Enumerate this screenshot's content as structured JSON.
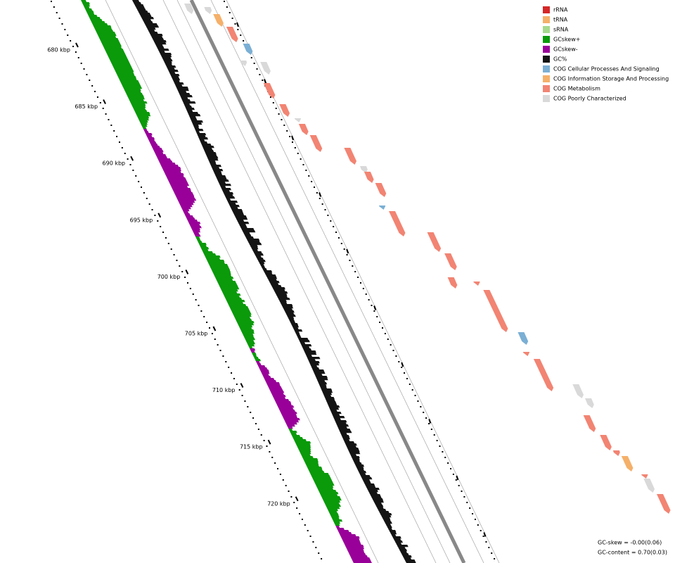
{
  "legend": {
    "items": [
      {
        "label": "rRNA",
        "color": "#d62728"
      },
      {
        "label": "tRNA",
        "color": "#f5b06a"
      },
      {
        "label": "sRNA",
        "color": "#a6d98e"
      },
      {
        "label": "GCskew+",
        "color": "#0a9a0a"
      },
      {
        "label": "GCskew-",
        "color": "#990099"
      },
      {
        "label": "GC%",
        "color": "#141414"
      },
      {
        "label": "COG Cellular Processes And Signaling",
        "color": "#7bafd4"
      },
      {
        "label": "COG Information Storage And Processing",
        "color": "#f5b06a"
      },
      {
        "label": "COG Metabolism",
        "color": "#f28473"
      },
      {
        "label": "COG Poorly Characterized",
        "color": "#d9d9d9"
      }
    ]
  },
  "axis": {
    "labels": [
      "680 kbp",
      "685 kbp",
      "690 kbp",
      "695 kbp",
      "700 kbp",
      "705 kbp",
      "710 kbp",
      "715 kbp",
      "720 kbp"
    ]
  },
  "stats": [
    "GC-skew = -0.00(0.06)",
    "GC-content = 0.70(0.03)"
  ]
}
